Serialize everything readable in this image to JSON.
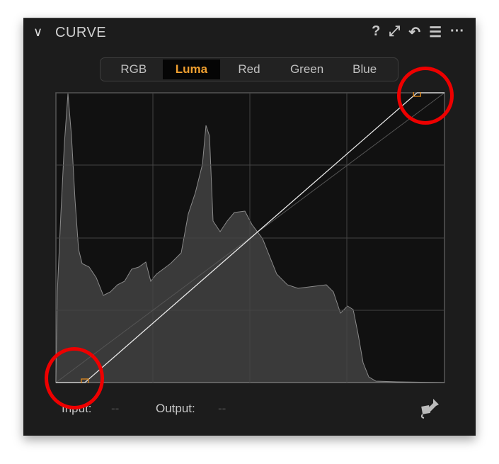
{
  "panel": {
    "title": "CURVE",
    "tools": [
      {
        "icon": "help-icon",
        "glyph": "?"
      },
      {
        "icon": "expand-icon",
        "glyph": "⤢"
      },
      {
        "icon": "reset-icon",
        "glyph": "↶"
      },
      {
        "icon": "menu-icon",
        "glyph": "☰"
      },
      {
        "icon": "more-icon",
        "glyph": "···"
      }
    ]
  },
  "tabs": [
    {
      "label": "RGB",
      "active": false
    },
    {
      "label": "Luma",
      "active": true
    },
    {
      "label": "Red",
      "active": false
    },
    {
      "label": "Green",
      "active": false
    },
    {
      "label": "Blue",
      "active": false
    }
  ],
  "curve": {
    "points": [
      {
        "input": 19,
        "output": 0
      },
      {
        "input": 237,
        "output": 255
      }
    ],
    "point_color": "#e08a1e"
  },
  "readout": {
    "input_label": "Input:",
    "input_value": "--",
    "output_label": "Output:",
    "output_value": "--"
  },
  "annotation_color": "#e00000"
}
